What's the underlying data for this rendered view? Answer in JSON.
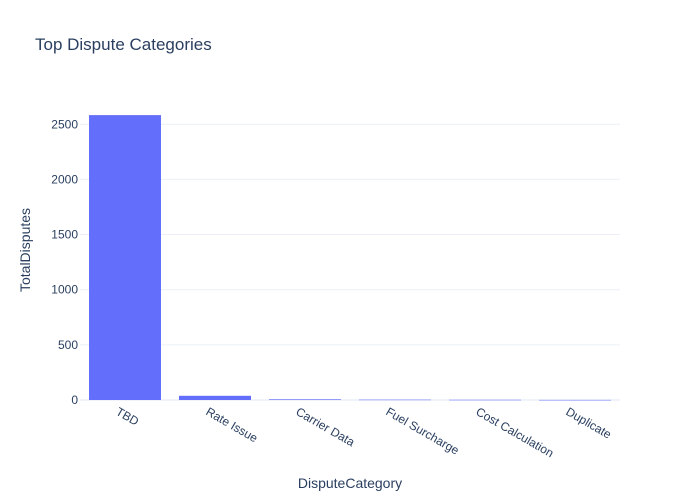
{
  "chart_data": {
    "type": "bar",
    "title": "Top Dispute Categories",
    "xlabel": "DisputeCategory",
    "ylabel": "TotalDisputes",
    "categories": [
      "TBD",
      "Rate Issue",
      "Carrier Data",
      "Fuel Surcharge",
      "Cost Calculation",
      "Duplicate"
    ],
    "values": [
      2583,
      38,
      6,
      3,
      2,
      1
    ],
    "ylim": [
      0,
      2720
    ],
    "yticks": [
      0,
      500,
      1000,
      1500,
      2000,
      2500
    ],
    "grid": true,
    "legend": "none",
    "bar_color": "#636efa"
  }
}
